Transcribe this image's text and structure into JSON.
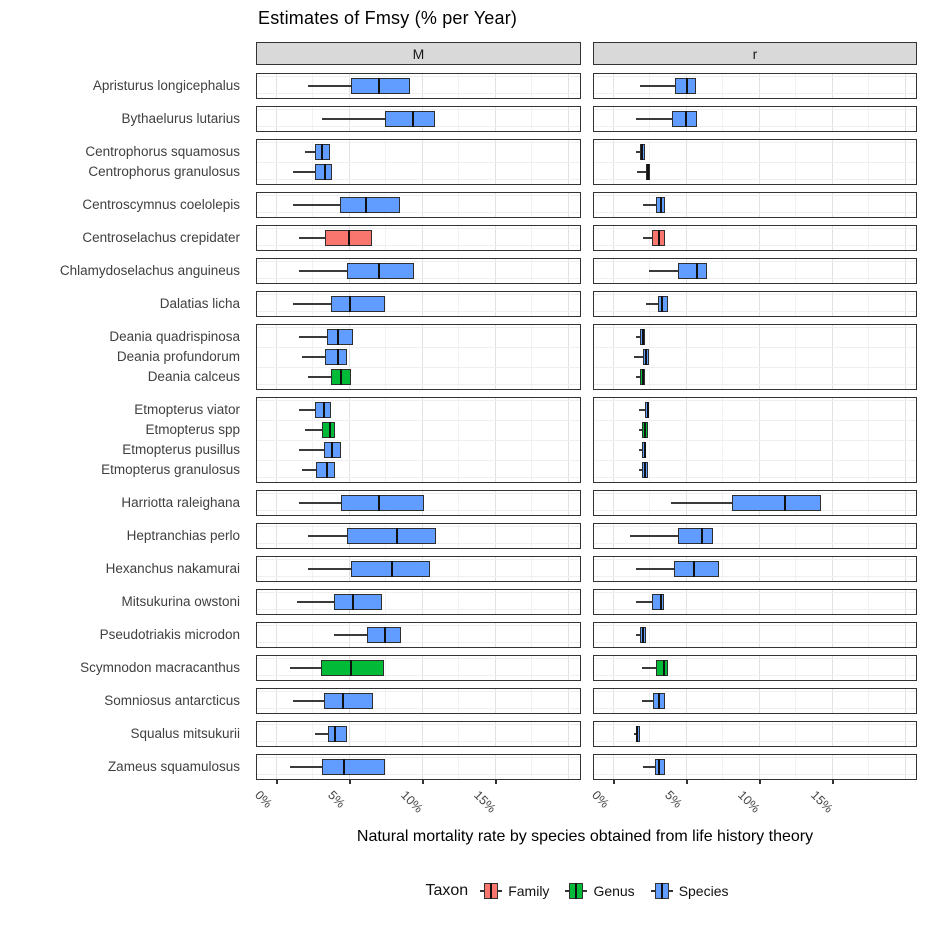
{
  "title": "Estimates of Fmsy (% per Year)",
  "facets": [
    "M",
    "r"
  ],
  "x_axis": {
    "title": "Natural mortality rate by species obtained from life history theory",
    "ticks": [
      "0%",
      "5%",
      "10%",
      "15%"
    ],
    "tick_values": [
      0,
      5,
      10,
      15
    ]
  },
  "legend": {
    "title": "Taxon",
    "items": [
      {
        "label": "Family",
        "color": "#F8766D"
      },
      {
        "label": "Genus",
        "color": "#00BA38"
      },
      {
        "label": "Species",
        "color": "#619CFF"
      }
    ]
  },
  "colors": {
    "taxon": {
      "Family": "#F8766D",
      "Genus": "#00BA38",
      "Species": "#619CFF"
    },
    "strip_bg": "#d9d9d9",
    "grid_major": "#e2e2e2",
    "grid_minor": "#f2f2f2"
  },
  "chart_data": {
    "type": "boxplot",
    "orientation": "horizontal",
    "unit": "% per year",
    "facet_columns": [
      "M",
      "r"
    ],
    "x_axis_range_displayed": [
      -1.3,
      20.9
    ],
    "grid_major_x": [
      0,
      5,
      10,
      15,
      20
    ],
    "grid_minor_x": [
      2.5,
      7.5,
      12.5,
      17.5
    ],
    "groups": [
      {
        "species": [
          {
            "name": "Apristurus longicephalus",
            "taxon": "Species",
            "M": {
              "min": 2.2,
              "q1": 5.2,
              "median": 7.1,
              "q3": 9.2,
              "max": 9.2
            },
            "r": {
              "min": 1.9,
              "q1": 4.3,
              "median": 5.1,
              "q3": 5.7,
              "max": 5.7
            }
          }
        ]
      },
      {
        "species": [
          {
            "name": "Bythaelurus lutarius",
            "taxon": "Species",
            "M": {
              "min": 3.2,
              "q1": 7.5,
              "median": 9.4,
              "q3": 10.9,
              "max": 10.9
            },
            "r": {
              "min": 1.6,
              "q1": 4.1,
              "median": 5.0,
              "q3": 5.8,
              "max": 5.8
            }
          }
        ]
      },
      {
        "species": [
          {
            "name": "Centrophorus squamosus",
            "taxon": "Species",
            "M": {
              "min": 2.0,
              "q1": 2.7,
              "median": 3.2,
              "q3": 3.7,
              "max": 3.7
            },
            "r": {
              "min": 1.6,
              "q1": 1.9,
              "median": 2.0,
              "q3": 2.2,
              "max": 2.2
            }
          },
          {
            "name": "Centrophorus granulosus",
            "taxon": "Species",
            "M": {
              "min": 1.2,
              "q1": 2.7,
              "median": 3.4,
              "q3": 3.9,
              "max": 3.9
            },
            "r": {
              "min": 1.7,
              "q1": 2.3,
              "median": 2.4,
              "q3": 2.6,
              "max": 2.6
            }
          }
        ]
      },
      {
        "species": [
          {
            "name": "Centroscymnus coelolepis",
            "taxon": "Species",
            "M": {
              "min": 1.2,
              "q1": 4.4,
              "median": 6.2,
              "q3": 8.5,
              "max": 8.5
            },
            "r": {
              "min": 2.1,
              "q1": 3.0,
              "median": 3.3,
              "q3": 3.6,
              "max": 3.6
            }
          }
        ]
      },
      {
        "species": [
          {
            "name": "Centroselachus crepidater",
            "taxon": "Family",
            "M": {
              "min": 1.6,
              "q1": 3.4,
              "median": 5.0,
              "q3": 6.6,
              "max": 6.6
            },
            "r": {
              "min": 2.1,
              "q1": 2.7,
              "median": 3.2,
              "q3": 3.6,
              "max": 3.6
            }
          }
        ]
      },
      {
        "species": [
          {
            "name": "Chlamydoselachus anguineus",
            "taxon": "Species",
            "M": {
              "min": 1.6,
              "q1": 4.9,
              "median": 7.1,
              "q3": 9.5,
              "max": 9.5
            },
            "r": {
              "min": 2.5,
              "q1": 4.5,
              "median": 5.8,
              "q3": 6.5,
              "max": 6.5
            }
          }
        ]
      },
      {
        "species": [
          {
            "name": "Dalatias licha",
            "taxon": "Species",
            "M": {
              "min": 1.2,
              "q1": 3.8,
              "median": 5.1,
              "q3": 7.5,
              "max": 7.5
            },
            "r": {
              "min": 2.3,
              "q1": 3.1,
              "median": 3.4,
              "q3": 3.8,
              "max": 3.8
            }
          }
        ]
      },
      {
        "species": [
          {
            "name": "Deania quadrispinosa",
            "taxon": "Species",
            "M": {
              "min": 1.6,
              "q1": 3.5,
              "median": 4.3,
              "q3": 5.3,
              "max": 5.3
            },
            "r": {
              "min": 1.6,
              "q1": 1.9,
              "median": 2.1,
              "q3": 2.2,
              "max": 2.2
            }
          },
          {
            "name": "Deania profundorum",
            "taxon": "Species",
            "M": {
              "min": 1.8,
              "q1": 3.4,
              "median": 4.3,
              "q3": 4.9,
              "max": 4.9
            },
            "r": {
              "min": 1.5,
              "q1": 2.1,
              "median": 2.3,
              "q3": 2.5,
              "max": 2.5
            }
          },
          {
            "name": "Deania calceus",
            "taxon": "Genus",
            "M": {
              "min": 2.2,
              "q1": 3.8,
              "median": 4.5,
              "q3": 5.2,
              "max": 5.2
            },
            "r": {
              "min": 1.6,
              "q1": 1.9,
              "median": 2.1,
              "q3": 2.2,
              "max": 2.2
            }
          }
        ]
      },
      {
        "species": [
          {
            "name": "Etmopterus viator",
            "taxon": "Species",
            "M": {
              "min": 1.6,
              "q1": 2.7,
              "median": 3.3,
              "q3": 3.8,
              "max": 3.8
            },
            "r": {
              "min": 1.8,
              "q1": 2.2,
              "median": 2.4,
              "q3": 2.5,
              "max": 2.5
            }
          },
          {
            "name": "Etmopterus spp",
            "taxon": "Genus",
            "M": {
              "min": 2.0,
              "q1": 3.2,
              "median": 3.7,
              "q3": 4.1,
              "max": 4.1
            },
            "r": {
              "min": 1.8,
              "q1": 2.0,
              "median": 2.2,
              "q3": 2.4,
              "max": 2.4
            }
          },
          {
            "name": "Etmopterus pusillus",
            "taxon": "Species",
            "M": {
              "min": 1.6,
              "q1": 3.3,
              "median": 3.9,
              "q3": 4.5,
              "max": 4.5
            },
            "r": {
              "min": 1.8,
              "q1": 2.0,
              "median": 2.2,
              "q3": 2.3,
              "max": 2.3
            }
          },
          {
            "name": "Etmopterus granulosus",
            "taxon": "Species",
            "M": {
              "min": 1.8,
              "q1": 2.8,
              "median": 3.5,
              "q3": 4.1,
              "max": 4.1
            },
            "r": {
              "min": 1.8,
              "q1": 2.0,
              "median": 2.2,
              "q3": 2.4,
              "max": 2.4
            }
          }
        ]
      },
      {
        "species": [
          {
            "name": "Harriotta raleighana",
            "taxon": "Species",
            "M": {
              "min": 1.6,
              "q1": 4.5,
              "median": 7.1,
              "q3": 10.2,
              "max": 10.2
            },
            "r": {
              "min": 4.0,
              "q1": 8.2,
              "median": 11.8,
              "q3": 14.3,
              "max": 14.3
            }
          }
        ]
      },
      {
        "species": [
          {
            "name": "Heptranchias perlo",
            "taxon": "Species",
            "M": {
              "min": 2.2,
              "q1": 4.9,
              "median": 8.3,
              "q3": 11.0,
              "max": 11.0
            },
            "r": {
              "min": 1.2,
              "q1": 4.5,
              "median": 6.1,
              "q3": 6.9,
              "max": 6.9
            }
          }
        ]
      },
      {
        "species": [
          {
            "name": "Hexanchus nakamurai",
            "taxon": "Species",
            "M": {
              "min": 2.2,
              "q1": 5.2,
              "median": 8.0,
              "q3": 10.6,
              "max": 10.6
            },
            "r": {
              "min": 1.6,
              "q1": 4.2,
              "median": 5.6,
              "q3": 7.3,
              "max": 7.3
            }
          }
        ]
      },
      {
        "species": [
          {
            "name": "Mitsukurina owstoni",
            "taxon": "Species",
            "M": {
              "min": 1.5,
              "q1": 4.0,
              "median": 5.3,
              "q3": 7.3,
              "max": 7.3
            },
            "r": {
              "min": 1.6,
              "q1": 2.7,
              "median": 3.3,
              "q3": 3.5,
              "max": 3.5
            }
          }
        ]
      },
      {
        "species": [
          {
            "name": "Pseudotriakis microdon",
            "taxon": "Species",
            "M": {
              "min": 4.0,
              "q1": 6.3,
              "median": 7.5,
              "q3": 8.6,
              "max": 8.6
            },
            "r": {
              "min": 1.6,
              "q1": 1.9,
              "median": 2.1,
              "q3": 2.3,
              "max": 2.3
            }
          }
        ]
      },
      {
        "species": [
          {
            "name": "Scymnodon macracanthus",
            "taxon": "Genus",
            "M": {
              "min": 1.0,
              "q1": 3.1,
              "median": 5.2,
              "q3": 7.4,
              "max": 7.4
            },
            "r": {
              "min": 2.0,
              "q1": 3.0,
              "median": 3.5,
              "q3": 3.8,
              "max": 3.8
            }
          }
        ]
      },
      {
        "species": [
          {
            "name": "Somniosus antarcticus",
            "taxon": "Species",
            "M": {
              "min": 1.2,
              "q1": 3.3,
              "median": 4.6,
              "q3": 6.7,
              "max": 6.7
            },
            "r": {
              "min": 2.0,
              "q1": 2.8,
              "median": 3.2,
              "q3": 3.6,
              "max": 3.6
            }
          }
        ]
      },
      {
        "species": [
          {
            "name": "Squalus mitsukurii",
            "taxon": "Species",
            "M": {
              "min": 2.7,
              "q1": 3.6,
              "median": 4.1,
              "q3": 4.9,
              "max": 4.9
            },
            "r": {
              "min": 1.5,
              "q1": 1.6,
              "median": 1.7,
              "q3": 1.9,
              "max": 1.9
            }
          }
        ]
      },
      {
        "species": [
          {
            "name": "Zameus squamulosus",
            "taxon": "Species",
            "M": {
              "min": 1.0,
              "q1": 3.2,
              "median": 4.7,
              "q3": 7.5,
              "max": 7.5
            },
            "r": {
              "min": 2.1,
              "q1": 2.9,
              "median": 3.2,
              "q3": 3.6,
              "max": 3.6
            }
          }
        ]
      }
    ]
  }
}
